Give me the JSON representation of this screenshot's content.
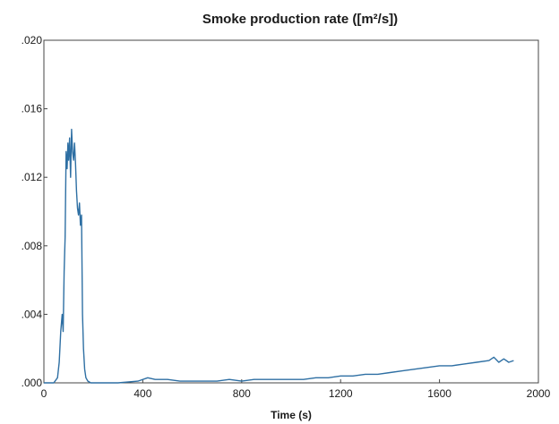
{
  "chart_data": {
    "type": "line",
    "title": "Smoke production rate ([m²/s])",
    "xlabel": "Time (s)",
    "ylabel": "",
    "xlim": [
      0,
      2000
    ],
    "ylim": [
      0,
      0.02
    ],
    "x_ticks": [
      "0",
      "400",
      "800",
      "1200",
      "1600",
      "2000"
    ],
    "y_ticks": [
      ".000",
      ".004",
      ".008",
      ".012",
      ".016",
      ".020"
    ],
    "grid": false,
    "legend": "none",
    "line_color": "#2e6fa3",
    "series": [
      {
        "x": [
          0,
          40,
          55,
          62,
          68,
          74,
          78,
          82,
          86,
          90,
          94,
          97,
          100,
          104,
          108,
          112,
          116,
          120,
          124,
          128,
          132,
          136,
          140,
          144,
          148,
          152,
          156,
          160,
          165,
          170,
          178,
          190,
          220,
          300,
          380,
          420,
          450,
          500,
          550,
          600,
          650,
          700,
          750,
          800,
          850,
          900,
          950,
          1000,
          1050,
          1100,
          1150,
          1200,
          1250,
          1300,
          1350,
          1400,
          1450,
          1500,
          1550,
          1600,
          1650,
          1700,
          1750,
          1800,
          1820,
          1840,
          1860,
          1880,
          1900
        ],
        "y": [
          0.0,
          0.0,
          0.0003,
          0.0012,
          0.003,
          0.004,
          0.003,
          0.0065,
          0.0085,
          0.0135,
          0.0125,
          0.014,
          0.013,
          0.0143,
          0.012,
          0.0148,
          0.0135,
          0.013,
          0.014,
          0.0128,
          0.0112,
          0.0102,
          0.0098,
          0.0105,
          0.0092,
          0.0098,
          0.004,
          0.002,
          0.0008,
          0.0003,
          0.0001,
          0.0,
          0.0,
          0.0,
          0.0001,
          0.0003,
          0.0002,
          0.0002,
          0.0001,
          0.0001,
          0.0001,
          0.0001,
          0.0002,
          0.0001,
          0.0002,
          0.0002,
          0.0002,
          0.0002,
          0.0002,
          0.0003,
          0.0003,
          0.0004,
          0.0004,
          0.0005,
          0.0005,
          0.0006,
          0.0007,
          0.0008,
          0.0009,
          0.001,
          0.001,
          0.0011,
          0.0012,
          0.0013,
          0.0015,
          0.0012,
          0.0014,
          0.0012,
          0.0013
        ]
      }
    ]
  }
}
